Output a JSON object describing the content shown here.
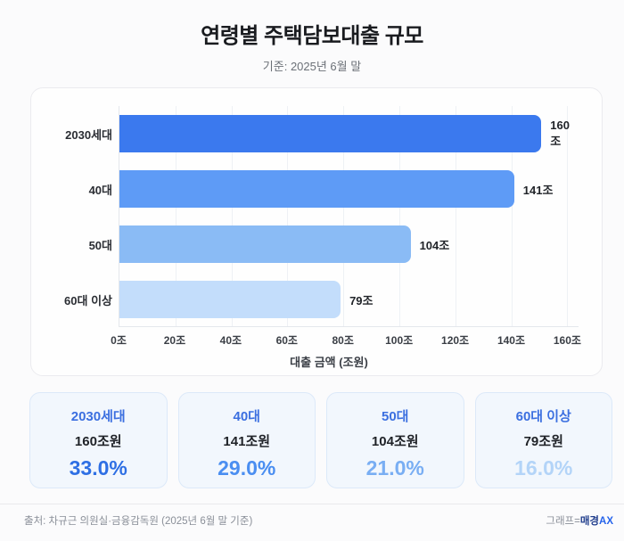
{
  "header": {
    "title": "연령별 주택담보대출 규모",
    "subtitle": "기준: 2025년 6월 말"
  },
  "chart_data": {
    "type": "bar",
    "orientation": "horizontal",
    "title": "연령별 주택담보대출 규모",
    "categories": [
      "2030세대",
      "40대",
      "50대",
      "60대 이상"
    ],
    "values": [
      160,
      141,
      104,
      79
    ],
    "value_labels": [
      "160조",
      "141조",
      "104조",
      "79조"
    ],
    "bar_colors": [
      "#3b79ee",
      "#5e9bf6",
      "#8abbf5",
      "#c3ddfb"
    ],
    "xlabel": "대출 금액 (조원)",
    "x_ticks": [
      "0조",
      "20조",
      "40조",
      "60조",
      "80조",
      "100조",
      "120조",
      "140조",
      "160조"
    ],
    "x_tick_values": [
      0,
      20,
      40,
      60,
      80,
      100,
      120,
      140,
      160
    ],
    "xlim": [
      0,
      164
    ],
    "grid": true,
    "legend": "none"
  },
  "cards": [
    {
      "label": "2030세대",
      "amount": "160조원",
      "percent": "33.0%",
      "percent_color": "#2e6fe4"
    },
    {
      "label": "40대",
      "amount": "141조원",
      "percent": "29.0%",
      "percent_color": "#4a8ef1"
    },
    {
      "label": "50대",
      "amount": "104조원",
      "percent": "21.0%",
      "percent_color": "#79aef3"
    },
    {
      "label": "60대 이상",
      "amount": "79조원",
      "percent": "16.0%",
      "percent_color": "#b3d4f8"
    }
  ],
  "footer": {
    "source": "출처: 차규근 의원실·금융감독원 (2025년 6월 말 기준)",
    "credit_prefix": "그래프=",
    "credit_brand": "매경",
    "credit_suffix": "AX"
  },
  "colors": {
    "page_bg": "#fbfbfc",
    "card_bg": "#fefefe",
    "summary_card_bg": "#f2f7fd",
    "summary_card_border": "#dce9f9",
    "card_title_blue": "#3b6fe0",
    "brand_navy": "#23408e",
    "brand_blue": "#2563eb",
    "gridline": "#eef1f5"
  }
}
